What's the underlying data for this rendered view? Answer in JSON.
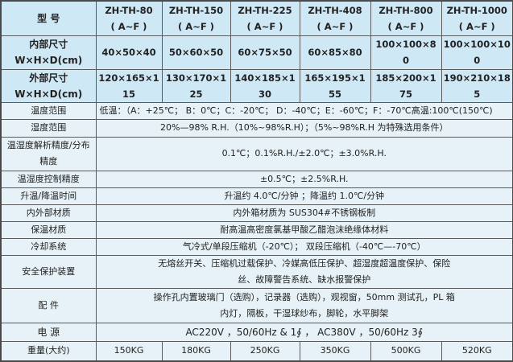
{
  "header": {
    "label": "型  号",
    "models": [
      {
        "name": "ZH-TH-80",
        "suffix": "( A~F )"
      },
      {
        "name": "ZH-TH-150",
        "suffix": "( A~F )"
      },
      {
        "name": "ZH-TH-225",
        "suffix": "( A~F )"
      },
      {
        "name": "ZH-TH-408",
        "suffix": "( A~F )"
      },
      {
        "name": "ZH-TH-800",
        "suffix": "( A~F )"
      },
      {
        "name": "ZH-TH-1000",
        "suffix": "( A~F )"
      }
    ]
  },
  "inner_size": {
    "label1": "内部尺寸",
    "label2": "W×H×D(cm)",
    "values": [
      "40×50×40",
      "50×60×50",
      "60×75×50",
      "60×85×80",
      "100×100×80",
      "100×100×100"
    ]
  },
  "outer_size": {
    "label1": "外部尺寸",
    "label2": "W×H×D(cm)",
    "values": [
      "120×165×115",
      "130×170×125",
      "140×185×130",
      "165×195×155",
      "185×200×175",
      "190×210×185"
    ]
  },
  "specs": [
    {
      "label": "温度范围",
      "value": "低温：（A：+25℃； B：0℃；C：-20℃； D：-40℃；E：-60℃；F：-70℃高温:100℃(150℃)"
    },
    {
      "label": "湿度范围",
      "value": "20%—98% R.H.（10%~98%R.H）；（5%~98%R.H 为特殊选用条件）"
    },
    {
      "label": "温湿度解析精度/分布精度",
      "value": "0.1℃；0.1%R.H./±2.0℃；±3.0%R.H."
    },
    {
      "label": "温湿度控制精度",
      "value": "±0.5℃；±2.5%R.H."
    },
    {
      "label": "升温/降温时间",
      "value": "升温约 4.0℃/分钟 ；降温约 1.0℃/分钟"
    },
    {
      "label": "内外部材质",
      "value": "内外箱材质为 SUS304#不锈钢板制"
    },
    {
      "label": "保温材质",
      "value": "耐高温高密度氯基甲酸乙醋泡沫绝缘体材料"
    },
    {
      "label": "冷却系统",
      "value": "气冷式/单段压缩机（-20℃）； 双段压缩机（-40℃—-70℃）"
    },
    {
      "label": "安全保护装置",
      "value": "无熔丝开关、压缩机过载保护、冷媒高低压保护、超湿度超温度保护、保险丝、故障警告系统、缺水报警保护"
    },
    {
      "label": "配  件",
      "value": "操作孔内置玻璃门（选购），记录器（选购），观视窗，50mm 测试孔，PL 箱内灯，隔板，干湿球纱布，脚轮，水平脚架"
    },
    {
      "label": "电  源",
      "value": "AC220V ，50/60Hz & 1∮ ， AC380V ，50/60Hz 3∮"
    }
  ],
  "weight": {
    "label": "重量(大约)",
    "values": [
      "150KG",
      "180KG",
      "250KG",
      "350KG",
      "500KG",
      "520KG"
    ]
  }
}
